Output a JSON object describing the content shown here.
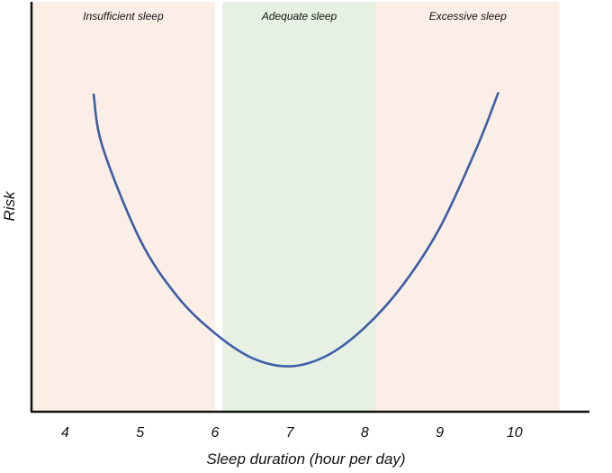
{
  "chart_data": {
    "type": "line",
    "title": "",
    "xlabel": "Sleep duration (hour per day)",
    "ylabel": "Risk",
    "xlim": [
      3.55,
      11.0
    ],
    "ylim": [
      0,
      1
    ],
    "x_ticks": [
      4,
      5,
      6,
      7,
      8,
      9,
      10
    ],
    "y_ticks_shown": false,
    "grid": false,
    "zones": [
      {
        "label": "Insufficient sleep",
        "x_start": 3.55,
        "x_end": 6.0,
        "color": "#fbeee6"
      },
      {
        "label": "Adequate sleep",
        "x_start": 6.1,
        "x_end": 8.15,
        "color": "#e6f1e3"
      },
      {
        "label": "Excessive sleep",
        "x_start": 8.15,
        "x_end": 10.6,
        "color": "#fbeee6"
      }
    ],
    "series": [
      {
        "color": "#3d5da8",
        "points": [
          {
            "x": 4.38,
            "y": 0.913
          },
          {
            "x": 4.5,
            "y": 0.744
          },
          {
            "x": 5.0,
            "y": 0.446
          },
          {
            "x": 5.5,
            "y": 0.263
          },
          {
            "x": 6.0,
            "y": 0.145
          },
          {
            "x": 6.5,
            "y": 0.065
          },
          {
            "x": 7.0,
            "y": 0.039
          },
          {
            "x": 7.5,
            "y": 0.074
          },
          {
            "x": 8.0,
            "y": 0.164
          },
          {
            "x": 8.5,
            "y": 0.298
          },
          {
            "x": 9.0,
            "y": 0.484
          },
          {
            "x": 9.5,
            "y": 0.745
          },
          {
            "x": 9.78,
            "y": 0.918
          }
        ]
      }
    ]
  }
}
